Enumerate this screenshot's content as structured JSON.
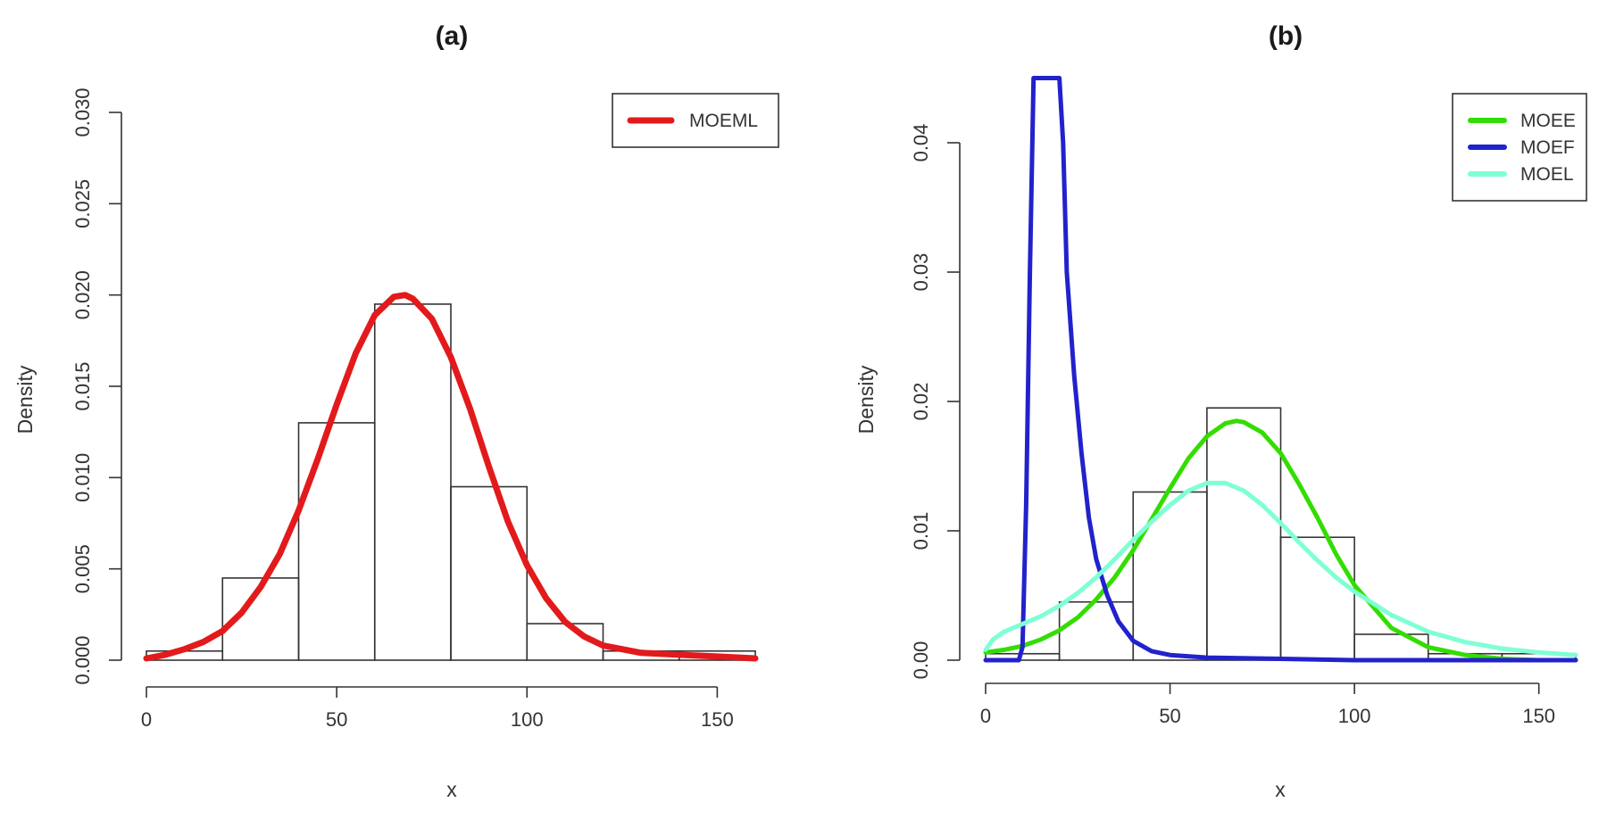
{
  "chart_data": [
    {
      "panel": "a",
      "type": "histogram",
      "title": "(a)",
      "xlabel": "x",
      "ylabel": "Density",
      "xlim": [
        0,
        160
      ],
      "ylim": [
        0,
        0.03
      ],
      "xticks": [
        0,
        50,
        100,
        150
      ],
      "xtick_labels": [
        "0",
        "50",
        "100",
        "150"
      ],
      "yticks": [
        0,
        0.005,
        0.01,
        0.015,
        0.02,
        0.025,
        0.03
      ],
      "ytick_labels": [
        "0.000",
        "0.005",
        "0.010",
        "0.015",
        "0.020",
        "0.025",
        "0.030"
      ],
      "histogram": {
        "bins": [
          0,
          20,
          40,
          60,
          80,
          100,
          120,
          140,
          160
        ],
        "density": [
          0.0005,
          0.0045,
          0.013,
          0.0195,
          0.0095,
          0.002,
          0.0005,
          0.0005
        ]
      },
      "legend_position": "top-right",
      "series": [
        {
          "name": "MOEML",
          "color": "#e31a1c",
          "x": [
            0,
            5,
            10,
            15,
            20,
            25,
            30,
            35,
            40,
            45,
            50,
            55,
            60,
            65,
            68,
            70,
            75,
            80,
            85,
            90,
            95,
            100,
            105,
            110,
            115,
            120,
            125,
            130,
            140,
            150,
            160
          ],
          "y": [
            0.0001,
            0.0003,
            0.0006,
            0.001,
            0.0016,
            0.0026,
            0.004,
            0.0058,
            0.0082,
            0.011,
            0.014,
            0.0168,
            0.0189,
            0.0199,
            0.02,
            0.0198,
            0.0187,
            0.0166,
            0.0138,
            0.0106,
            0.0076,
            0.0052,
            0.0034,
            0.0021,
            0.0013,
            0.0008,
            0.0006,
            0.0004,
            0.0003,
            0.0002,
            0.0001
          ]
        }
      ]
    },
    {
      "panel": "b",
      "type": "histogram",
      "title": "(b)",
      "xlabel": "x",
      "ylabel": "Density",
      "xlim": [
        0,
        160
      ],
      "ylim": [
        0,
        0.04
      ],
      "xticks": [
        0,
        50,
        100,
        150
      ],
      "xtick_labels": [
        "0",
        "50",
        "100",
        "150"
      ],
      "yticks": [
        0,
        0.01,
        0.02,
        0.03,
        0.04
      ],
      "ytick_labels": [
        "0.00",
        "0.01",
        "0.02",
        "0.03",
        "0.04"
      ],
      "histogram": {
        "bins": [
          0,
          20,
          40,
          60,
          80,
          100,
          120,
          140,
          160
        ],
        "density": [
          0.0005,
          0.0045,
          0.013,
          0.0195,
          0.0095,
          0.002,
          0.0005,
          0.0005
        ]
      },
      "legend_position": "top-right",
      "series": [
        {
          "name": "MOEE",
          "color": "#33dd00",
          "x": [
            0,
            5,
            10,
            15,
            20,
            25,
            30,
            35,
            40,
            45,
            50,
            55,
            60,
            65,
            68,
            70,
            75,
            80,
            85,
            90,
            95,
            100,
            110,
            120,
            130,
            140,
            150,
            160
          ],
          "y": [
            0.0006,
            0.0008,
            0.0011,
            0.0016,
            0.0023,
            0.0033,
            0.0047,
            0.0064,
            0.0085,
            0.0109,
            0.0133,
            0.0156,
            0.0173,
            0.0183,
            0.0185,
            0.0184,
            0.0176,
            0.016,
            0.0136,
            0.011,
            0.0082,
            0.0058,
            0.0025,
            0.001,
            0.0004,
            0.0001,
            0.0,
            0.0
          ]
        },
        {
          "name": "MOEF",
          "color": "#2222cc",
          "x": [
            0,
            9,
            10,
            11,
            12,
            13,
            20,
            21,
            22,
            24,
            26,
            28,
            30,
            33,
            36,
            40,
            45,
            50,
            60,
            80,
            100,
            120,
            160
          ],
          "y": [
            0,
            0,
            0.001,
            0.012,
            0.03,
            0.045,
            0.045,
            0.04,
            0.03,
            0.022,
            0.016,
            0.011,
            0.0078,
            0.005,
            0.003,
            0.0015,
            0.0007,
            0.0004,
            0.0002,
            0.0001,
            0.0,
            0.0,
            0.0
          ]
        },
        {
          "name": "MOEL",
          "color": "#7fffd4",
          "x": [
            0,
            2,
            5,
            10,
            15,
            20,
            25,
            30,
            35,
            40,
            45,
            50,
            55,
            60,
            65,
            70,
            75,
            80,
            85,
            90,
            95,
            100,
            110,
            120,
            130,
            140,
            150,
            160
          ],
          "y": [
            0.0008,
            0.0016,
            0.0022,
            0.0028,
            0.0034,
            0.0042,
            0.0052,
            0.0064,
            0.0078,
            0.0093,
            0.0107,
            0.012,
            0.0131,
            0.0137,
            0.0137,
            0.0131,
            0.012,
            0.0106,
            0.0091,
            0.0077,
            0.0064,
            0.0053,
            0.0035,
            0.0022,
            0.0014,
            0.0009,
            0.0006,
            0.0004
          ]
        }
      ]
    }
  ]
}
